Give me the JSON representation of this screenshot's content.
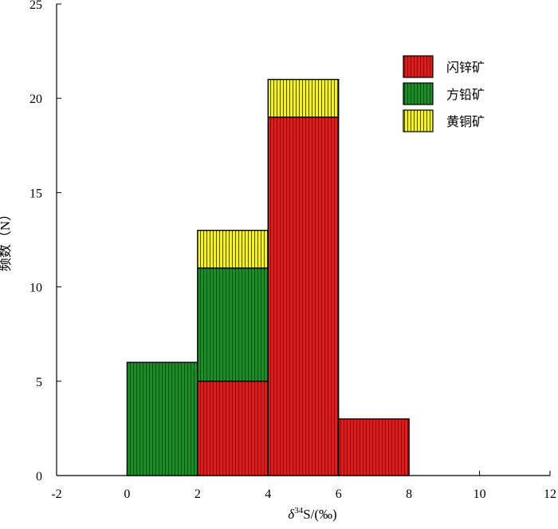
{
  "chart_data": {
    "type": "bar",
    "stacked": true,
    "bin_width": 2,
    "x": [
      0,
      2,
      4,
      6
    ],
    "xlim": [
      -2,
      12
    ],
    "ylim": [
      0,
      25
    ],
    "xticks": [
      -2,
      0,
      2,
      4,
      6,
      8,
      10,
      12
    ],
    "yticks": [
      0,
      5,
      10,
      15,
      20,
      25
    ],
    "xlabel": "δ³⁴S/(‰)",
    "ylabel": "频数（N）",
    "title": "",
    "grid": false,
    "legend_position": "top-right",
    "series": [
      {
        "name": "闪锌矿",
        "color": "#d42020",
        "values": [
          0,
          5,
          19,
          3
        ]
      },
      {
        "name": "方铅矿",
        "color": "#1f8a2e",
        "values": [
          6,
          6,
          0,
          0
        ]
      },
      {
        "name": "黄铜矿",
        "color": "#f2ef3a",
        "values": [
          0,
          2,
          2,
          0
        ]
      }
    ]
  }
}
